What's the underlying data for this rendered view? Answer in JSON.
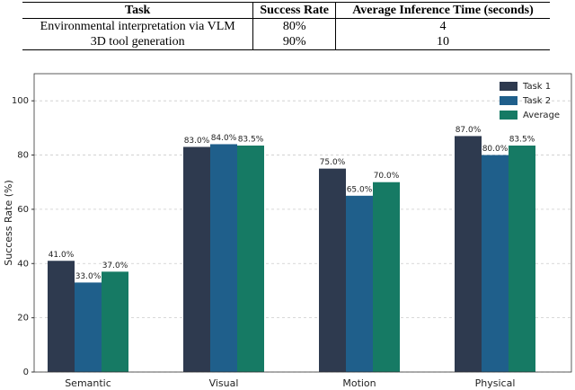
{
  "table": {
    "header": [
      "Task",
      "Success Rate",
      "Average Inference Time (seconds)"
    ],
    "rows": [
      [
        "Environmental interpretation via VLM",
        "80%",
        "4"
      ],
      [
        "3D tool generation",
        "90%",
        "10"
      ]
    ]
  },
  "chart_data": {
    "type": "bar",
    "y_label": "Success Rate (%)",
    "categories": [
      "Semantic",
      "Visual",
      "Motion",
      "Physical"
    ],
    "series": [
      {
        "name": "Task 1",
        "color": "#2e3a4f",
        "values": [
          41,
          83,
          75,
          87
        ],
        "value_labels": [
          "41.0%",
          "83.0%",
          "75.0%",
          "87.0%"
        ]
      },
      {
        "name": "Task 2",
        "color": "#1f5f8b",
        "values": [
          33,
          84,
          65,
          80
        ],
        "value_labels": [
          "33.0%",
          "84.0%",
          "65.0%",
          "80.0%"
        ]
      },
      {
        "name": "Average",
        "color": "#167a64",
        "values": [
          37,
          83.5,
          70,
          83.5
        ],
        "value_labels": [
          "37.0%",
          "83.5%",
          "70.0%",
          "83.5%"
        ]
      }
    ],
    "ylim": [
      0,
      110
    ],
    "yticks": [
      0,
      20,
      40,
      60,
      80,
      100
    ],
    "grid": true,
    "legend": "upper-right"
  }
}
